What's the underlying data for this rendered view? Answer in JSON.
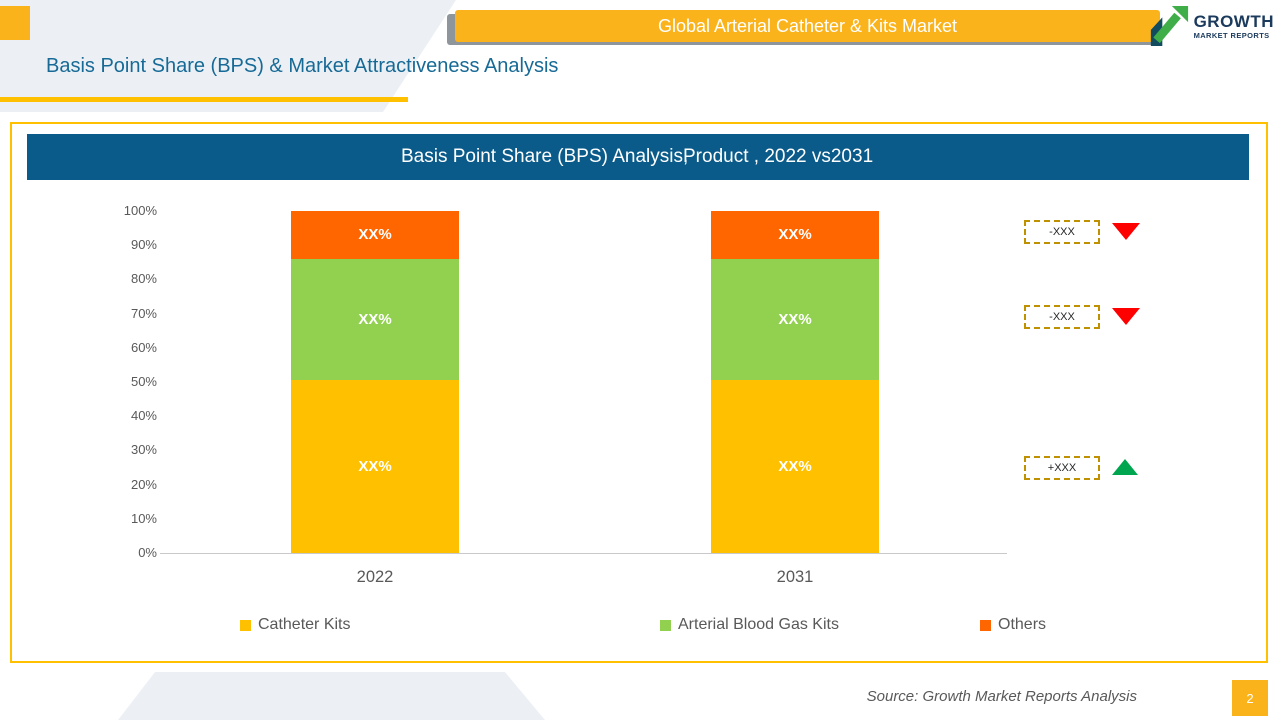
{
  "header": {
    "banner": "Global Arterial Catheter & Kits Market",
    "logo_line1": "GROWTH",
    "logo_line2": "MARKET REPORTS",
    "title": "Basis Point Share (BPS) & Market Attractiveness Analysis"
  },
  "chart_data": {
    "type": "bar",
    "stacked": true,
    "title_part1": "Basis Point Share (BPS) Analysis,",
    "title_part2": "Product , 2022 vs2031",
    "categories": [
      "2022",
      "2031"
    ],
    "series": [
      {
        "name": "Catheter Kits",
        "color": "#FFC000",
        "values": [
          50.5,
          50.5
        ],
        "display_label": "XX%"
      },
      {
        "name": "Arterial Blood Gas Kits",
        "color": "#92D050",
        "values": [
          35.5,
          35.5
        ],
        "display_label": "XX%"
      },
      {
        "name": "Others",
        "color": "#FF6600",
        "values": [
          14.0,
          14.0
        ],
        "display_label": "XX%"
      }
    ],
    "xlabel": "",
    "ylabel": "",
    "ylim": [
      0,
      100
    ],
    "yticks": [
      "100%",
      "90%",
      "80%",
      "70%",
      "60%",
      "50%",
      "40%",
      "30%",
      "20%",
      "10%",
      "0%"
    ],
    "grid": false,
    "legend_position": "bottom",
    "annotations": [
      {
        "text": "-XXX",
        "direction": "down",
        "color": "#FF0000",
        "refers_to": "Others"
      },
      {
        "text": "-XXX",
        "direction": "down",
        "color": "#FF0000",
        "refers_to": "Arterial Blood Gas Kits"
      },
      {
        "text": "+XXX",
        "direction": "up",
        "color": "#00A550",
        "refers_to": "Catheter Kits"
      }
    ]
  },
  "footer": {
    "source": "Source: Growth Market Reports Analysis",
    "page": "2"
  }
}
